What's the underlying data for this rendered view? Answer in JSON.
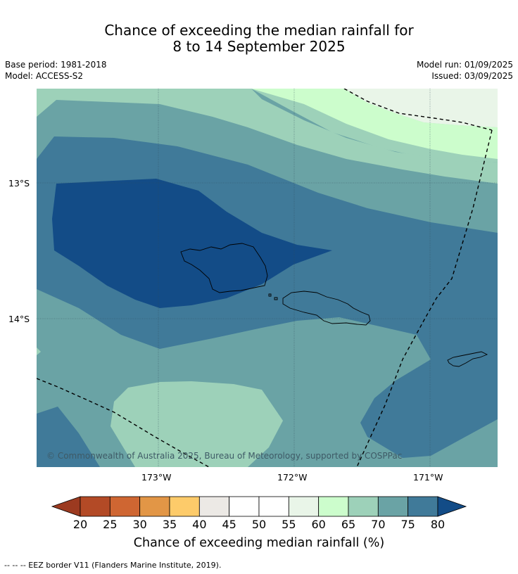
{
  "header": {
    "title_line1": "Chance of exceeding the median rainfall for",
    "title_line2": "8 to 14 September 2025",
    "base_period": "Base period: 1981-2018",
    "model": "Model: ACCESS-S2",
    "model_run": "Model run: 01/09/2025",
    "issued": "Issued: 03/09/2025"
  },
  "map": {
    "lat_labels": [
      "13°S",
      "14°S"
    ],
    "lon_labels": [
      "173°W",
      "172°W",
      "171°W"
    ],
    "copyright": "© Commonwealth of Australia 2025, Bureau of Meteorology, supported by COSPPac"
  },
  "colorbar": {
    "ticks": [
      "20",
      "25",
      "30",
      "35",
      "40",
      "45",
      "50",
      "55",
      "60",
      "65",
      "70",
      "75",
      "80"
    ],
    "label": "Chance of exceeding median rainfall (%)",
    "colors": [
      "#9c3a20",
      "#b34a26",
      "#cf6632",
      "#e29646",
      "#fdcb6a",
      "#ece9e5",
      "#ffffff",
      "#ffffff",
      "#e9f5e8",
      "#ccfdcc",
      "#9dd1b9",
      "#6aa3a5",
      "#407a99",
      "#134c87"
    ]
  },
  "footer": {
    "eez_note": "--  --  -- EEZ border V11 (Flanders Marine Institute, 2019)."
  }
}
